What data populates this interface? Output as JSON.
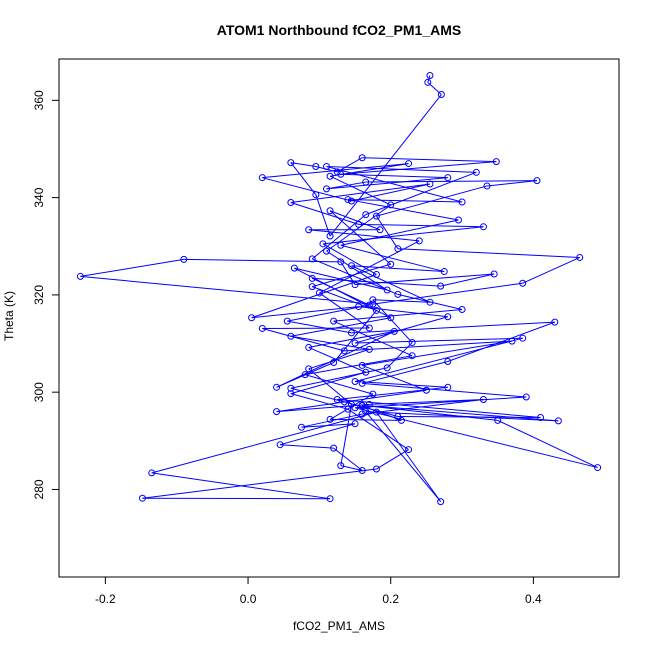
{
  "chart_data": {
    "type": "line",
    "title": "ATOM1 Northbound fCO2_PM1_AMS",
    "xlabel": "fCO2_PM1_AMS",
    "ylabel": "Theta (K)",
    "xlim": [
      -0.265,
      0.52
    ],
    "ylim": [
      262,
      368.5
    ],
    "xticks": [
      -0.2,
      0.0,
      0.2,
      0.4
    ],
    "xtick_labels": [
      "-0.2",
      "0.0",
      "0.2",
      "0.4"
    ],
    "yticks": [
      280,
      300,
      320,
      340,
      360
    ],
    "yticks_labels": [
      "280",
      "300",
      "320",
      "340",
      "360"
    ],
    "grid": false,
    "legend": "none",
    "color": "#0000ff",
    "markers": "open-circle",
    "series": [
      {
        "values": [
          [
            0.255,
            365.1
          ],
          [
            0.252,
            363.7
          ],
          [
            0.271,
            361.2
          ],
          [
            0.115,
            332.1
          ],
          [
            0.095,
            340.6
          ],
          [
            0.06,
            347.2
          ],
          [
            0.095,
            346.4
          ],
          [
            0.125,
            345.3
          ],
          [
            0.16,
            348.2
          ],
          [
            0.348,
            347.4
          ],
          [
            0.13,
            344.8
          ],
          [
            0.28,
            344.1
          ],
          [
            0.11,
            341.8
          ],
          [
            0.165,
            343.2
          ],
          [
            0.405,
            343.5
          ],
          [
            0.335,
            342.4
          ],
          [
            0.18,
            336.2
          ],
          [
            0.21,
            329.5
          ],
          [
            0.465,
            327.7
          ],
          [
            0.385,
            322.4
          ],
          [
            0.175,
            318.1
          ],
          [
            -0.235,
            323.8
          ],
          [
            -0.09,
            327.3
          ],
          [
            0.13,
            326.8
          ],
          [
            0.15,
            322.1
          ],
          [
            0.345,
            324.3
          ],
          [
            0.27,
            321.8
          ],
          [
            0.09,
            323.4
          ],
          [
            0.17,
            317.9
          ],
          [
            0.055,
            314.6
          ],
          [
            0.145,
            312.2
          ],
          [
            0.43,
            314.4
          ],
          [
            0.28,
            306.3
          ],
          [
            0.16,
            301.8
          ],
          [
            0.39,
            299.0
          ],
          [
            0.15,
            296.8
          ],
          [
            0.49,
            284.5
          ],
          [
            0.35,
            294.2
          ],
          [
            0.16,
            297.3
          ],
          [
            0.435,
            294.1
          ],
          [
            0.165,
            296.0
          ],
          [
            0.27,
            277.5
          ],
          [
            0.18,
            295.9
          ],
          [
            -0.135,
            283.4
          ],
          [
            0.115,
            278.1
          ],
          [
            -0.148,
            278.2
          ],
          [
            0.18,
            284.2
          ],
          [
            0.225,
            288.2
          ],
          [
            0.14,
            296.5
          ],
          [
            0.06,
            299.7
          ],
          [
            0.165,
            304.1
          ],
          [
            0.085,
            309.2
          ],
          [
            0.205,
            312.5
          ],
          [
            0.04,
            301.0
          ],
          [
            0.12,
            306.1
          ],
          [
            0.18,
            316.8
          ],
          [
            0.09,
            321.7
          ],
          [
            0.2,
            326.3
          ],
          [
            0.115,
            337.3
          ],
          [
            0.185,
            333.4
          ],
          [
            0.085,
            333.4
          ],
          [
            0.24,
            331.1
          ],
          [
            0.1,
            320.4
          ],
          [
            0.17,
            313.2
          ],
          [
            0.02,
            313.1
          ],
          [
            0.135,
            308.5
          ],
          [
            0.37,
            310.5
          ],
          [
            0.16,
            305.5
          ],
          [
            0.25,
            300.4
          ],
          [
            0.04,
            296.0
          ],
          [
            0.17,
            297.5
          ],
          [
            0.33,
            298.5
          ],
          [
            0.16,
            295.5
          ],
          [
            0.075,
            292.8
          ],
          [
            0.15,
            293.5
          ],
          [
            0.045,
            289.2
          ],
          [
            0.12,
            288.5
          ],
          [
            0.16,
            283.9
          ],
          [
            0.13,
            284.9
          ],
          [
            0.145,
            297.5
          ],
          [
            0.085,
            304.8
          ],
          [
            0.17,
            308.8
          ],
          [
            0.06,
            311.5
          ],
          [
            0.2,
            315.3
          ],
          [
            0.065,
            325.5
          ],
          [
            0.195,
            321.0
          ],
          [
            0.11,
            329.0
          ],
          [
            0.2,
            338.5
          ],
          [
            0.115,
            344.4
          ],
          [
            0.225,
            347.0
          ],
          [
            0.02,
            344.1
          ],
          [
            0.145,
            339.3
          ],
          [
            0.255,
            342.8
          ],
          [
            0.06,
            339.0
          ],
          [
            0.155,
            334.5
          ],
          [
            0.33,
            334.0
          ],
          [
            0.105,
            330.5
          ],
          [
            0.18,
            324.2
          ],
          [
            0.005,
            315.3
          ],
          [
            0.155,
            317.6
          ],
          [
            0.28,
            315.5
          ],
          [
            0.15,
            310.1
          ],
          [
            0.385,
            311.1
          ],
          [
            0.15,
            302.2
          ],
          [
            0.28,
            301.0
          ],
          [
            0.125,
            298.5
          ],
          [
            0.41,
            294.8
          ],
          [
            0.21,
            295.0
          ],
          [
            0.135,
            298.0
          ],
          [
            0.06,
            300.8
          ],
          [
            0.195,
            305.0
          ],
          [
            0.23,
            310.2
          ],
          [
            0.175,
            319.0
          ],
          [
            0.255,
            318.5
          ],
          [
            0.145,
            326.0
          ],
          [
            0.275,
            324.8
          ],
          [
            0.13,
            330.2
          ],
          [
            0.295,
            335.4
          ],
          [
            0.14,
            339.6
          ],
          [
            0.3,
            339.1
          ],
          [
            0.11,
            346.4
          ],
          [
            0.32,
            345.2
          ],
          [
            0.165,
            336.5
          ],
          [
            0.09,
            327.4
          ],
          [
            0.21,
            320.1
          ],
          [
            0.3,
            317.0
          ],
          [
            0.12,
            314.6
          ],
          [
            0.23,
            307.5
          ],
          [
            0.08,
            303.6
          ],
          [
            0.175,
            299.6
          ],
          [
            0.115,
            294.4
          ],
          [
            0.215,
            294.2
          ],
          [
            0.16,
            297.2
          ]
        ]
      }
    ]
  }
}
